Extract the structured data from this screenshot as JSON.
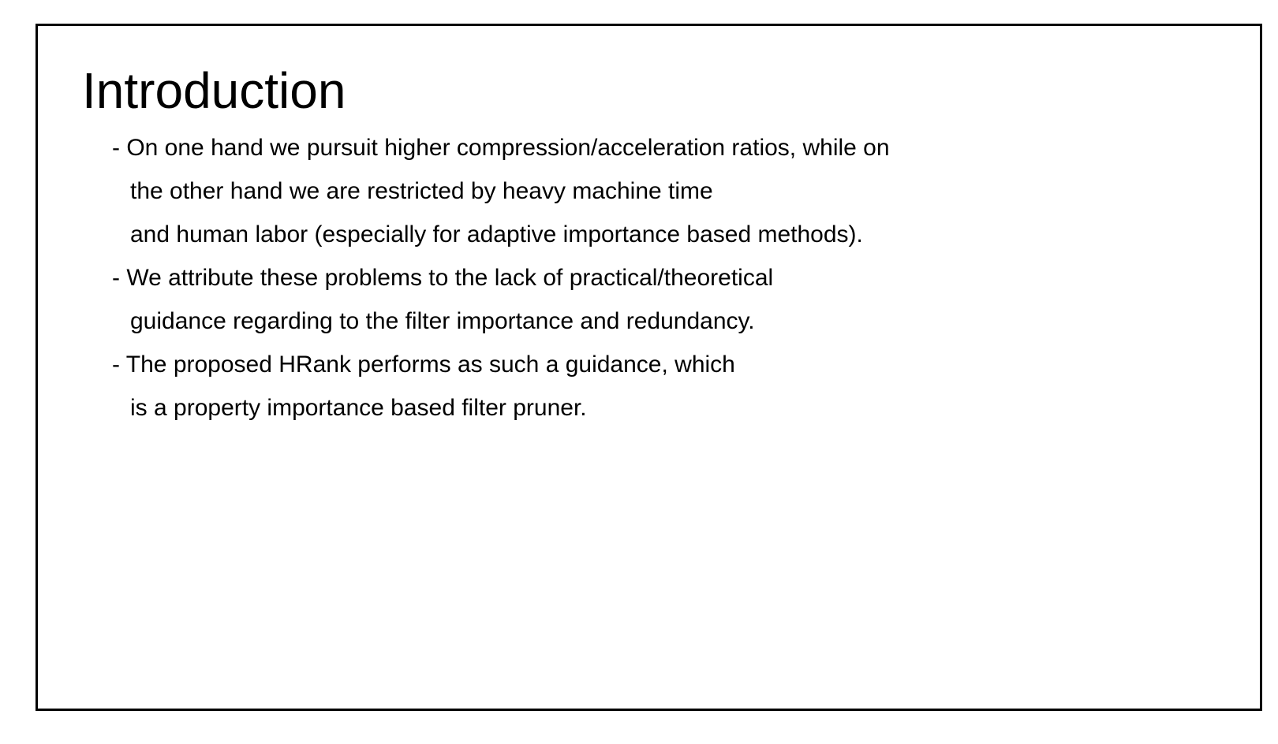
{
  "slide": {
    "title": "Introduction",
    "lines": [
      "- On one hand we pursuit higher compression/acceleration ratios, while on",
      "the other hand we are restricted by heavy machine time",
      "and human labor (especially for adaptive importance based methods).",
      "- We attribute these problems to the lack of practical/theoretical",
      "guidance regarding to the filter importance and redundancy.",
      "- The proposed HRank performs as such a guidance, which",
      "is a property importance based filter pruner."
    ]
  }
}
